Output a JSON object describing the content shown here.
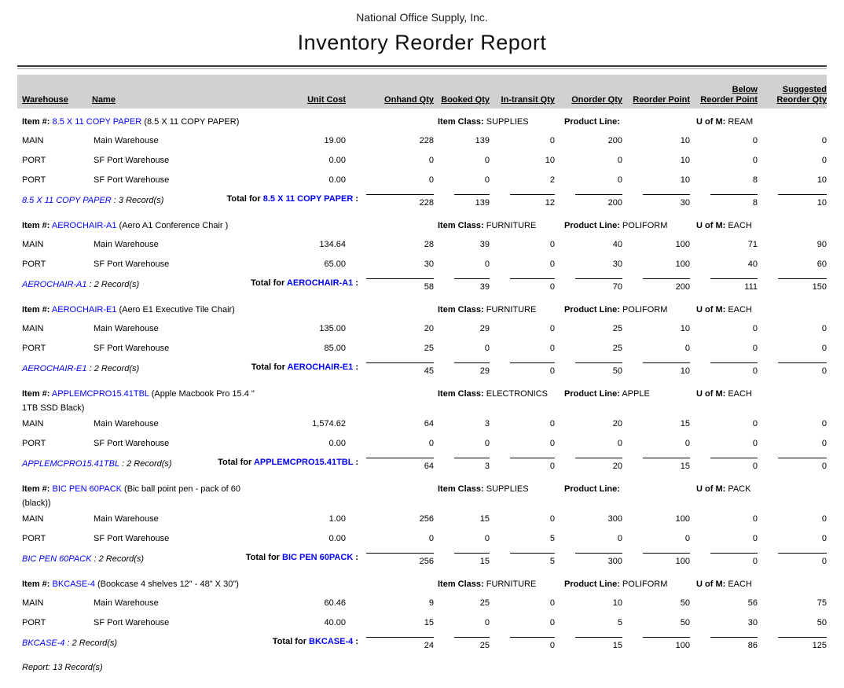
{
  "report": {
    "company": "National Office Supply, Inc.",
    "title": "Inventory Reorder Report",
    "footer": "Report: 13 Record(s)"
  },
  "colors": {
    "link_blue": "#0000FE",
    "header_band_gray": "#D1D1D1"
  },
  "columns": {
    "warehouse": "Warehouse",
    "name": "Name",
    "unit_cost": "Unit Cost",
    "onhand": "Onhand Qty",
    "booked": "Booked Qty",
    "in_transit": "In-transit Qty",
    "onorder": "Onorder Qty",
    "reorder_point": "Reorder Point",
    "below_line1": "Below",
    "below_line2": "Reorder Point",
    "suggested_line1": "Suggested",
    "suggested_line2": "Reorder Qty"
  },
  "labels": {
    "item_prefix": "Item #:",
    "item_class": "Item Class:",
    "product_line": "Product Line:",
    "uom": "U of M:",
    "total_for": "Total for",
    "records_suffix": "Record(s)"
  },
  "groups": [
    {
      "code": "8.5 X 11 COPY PAPER",
      "description": "(8.5 X 11 COPY PAPER)",
      "description_line2": "",
      "item_class": "SUPPLIES",
      "product_line": "",
      "uom": "REAM",
      "record_count": "3",
      "rows": [
        {
          "warehouse": "MAIN",
          "name": "Main Warehouse",
          "unit_cost": "19.00",
          "onhand": "228",
          "booked": "139",
          "in_transit": "0",
          "onorder": "200",
          "reorder_point": "10",
          "below_reorder": "0",
          "suggested": "0"
        },
        {
          "warehouse": "PORT",
          "name": "SF Port Warehouse",
          "unit_cost": "0.00",
          "onhand": "0",
          "booked": "0",
          "in_transit": "10",
          "onorder": "0",
          "reorder_point": "10",
          "below_reorder": "0",
          "suggested": "0"
        },
        {
          "warehouse": "PORT",
          "name": "SF Port Warehouse",
          "unit_cost": "0.00",
          "onhand": "0",
          "booked": "0",
          "in_transit": "2",
          "onorder": "0",
          "reorder_point": "10",
          "below_reorder": "8",
          "suggested": "10"
        }
      ],
      "totals": {
        "onhand": "228",
        "booked": "139",
        "in_transit": "12",
        "onorder": "200",
        "reorder_point": "30",
        "below_reorder": "8",
        "suggested": "10"
      }
    },
    {
      "code": "AEROCHAIR-A1",
      "description": "(Aero A1 Conference Chair )",
      "description_line2": "",
      "item_class": "FURNITURE",
      "product_line": "POLIFORM",
      "uom": "EACH",
      "record_count": "2",
      "rows": [
        {
          "warehouse": "MAIN",
          "name": "Main Warehouse",
          "unit_cost": "134.64",
          "onhand": "28",
          "booked": "39",
          "in_transit": "0",
          "onorder": "40",
          "reorder_point": "100",
          "below_reorder": "71",
          "suggested": "90"
        },
        {
          "warehouse": "PORT",
          "name": "SF Port Warehouse",
          "unit_cost": "65.00",
          "onhand": "30",
          "booked": "0",
          "in_transit": "0",
          "onorder": "30",
          "reorder_point": "100",
          "below_reorder": "40",
          "suggested": "60"
        }
      ],
      "totals": {
        "onhand": "58",
        "booked": "39",
        "in_transit": "0",
        "onorder": "70",
        "reorder_point": "200",
        "below_reorder": "111",
        "suggested": "150"
      }
    },
    {
      "code": "AEROCHAIR-E1",
      "description": "(Aero E1 Executive Tile Chair)",
      "description_line2": "",
      "item_class": "FURNITURE",
      "product_line": "POLIFORM",
      "uom": "EACH",
      "record_count": "2",
      "rows": [
        {
          "warehouse": "MAIN",
          "name": "Main Warehouse",
          "unit_cost": "135.00",
          "onhand": "20",
          "booked": "29",
          "in_transit": "0",
          "onorder": "25",
          "reorder_point": "10",
          "below_reorder": "0",
          "suggested": "0"
        },
        {
          "warehouse": "PORT",
          "name": "SF Port Warehouse",
          "unit_cost": "85.00",
          "onhand": "25",
          "booked": "0",
          "in_transit": "0",
          "onorder": "25",
          "reorder_point": "0",
          "below_reorder": "0",
          "suggested": "0"
        }
      ],
      "totals": {
        "onhand": "45",
        "booked": "29",
        "in_transit": "0",
        "onorder": "50",
        "reorder_point": "10",
        "below_reorder": "0",
        "suggested": "0"
      }
    },
    {
      "code": "APPLEMCPRO15.41TBL",
      "description": "(Apple Macbook Pro 15.4 \"",
      "description_line2": "1TB SSD Black)",
      "item_class": "ELECTRONICS",
      "product_line": "APPLE",
      "uom": "EACH",
      "record_count": "2",
      "rows": [
        {
          "warehouse": "MAIN",
          "name": "Main Warehouse",
          "unit_cost": "1,574.62",
          "onhand": "64",
          "booked": "3",
          "in_transit": "0",
          "onorder": "20",
          "reorder_point": "15",
          "below_reorder": "0",
          "suggested": "0"
        },
        {
          "warehouse": "PORT",
          "name": "SF Port Warehouse",
          "unit_cost": "0.00",
          "onhand": "0",
          "booked": "0",
          "in_transit": "0",
          "onorder": "0",
          "reorder_point": "0",
          "below_reorder": "0",
          "suggested": "0"
        }
      ],
      "totals": {
        "onhand": "64",
        "booked": "3",
        "in_transit": "0",
        "onorder": "20",
        "reorder_point": "15",
        "below_reorder": "0",
        "suggested": "0"
      }
    },
    {
      "code": "BIC PEN 60PACK",
      "description": "(Bic ball point pen - pack of 60",
      "description_line2": "(black))",
      "item_class": "SUPPLIES",
      "product_line": "",
      "uom": "PACK",
      "record_count": "2",
      "rows": [
        {
          "warehouse": "MAIN",
          "name": "Main Warehouse",
          "unit_cost": "1.00",
          "onhand": "256",
          "booked": "15",
          "in_transit": "0",
          "onorder": "300",
          "reorder_point": "100",
          "below_reorder": "0",
          "suggested": "0"
        },
        {
          "warehouse": "PORT",
          "name": "SF Port Warehouse",
          "unit_cost": "0.00",
          "onhand": "0",
          "booked": "0",
          "in_transit": "5",
          "onorder": "0",
          "reorder_point": "0",
          "below_reorder": "0",
          "suggested": "0"
        }
      ],
      "totals": {
        "onhand": "256",
        "booked": "15",
        "in_transit": "5",
        "onorder": "300",
        "reorder_point": "100",
        "below_reorder": "0",
        "suggested": "0"
      }
    },
    {
      "code": "BKCASE-4",
      "description": "(Bookcase 4 shelves 12\" - 48\" X 30\")",
      "description_line2": "",
      "item_class": "FURNITURE",
      "product_line": "POLIFORM",
      "uom": "EACH",
      "record_count": "2",
      "rows": [
        {
          "warehouse": "MAIN",
          "name": "Main Warehouse",
          "unit_cost": "60.46",
          "onhand": "9",
          "booked": "25",
          "in_transit": "0",
          "onorder": "10",
          "reorder_point": "50",
          "below_reorder": "56",
          "suggested": "75"
        },
        {
          "warehouse": "PORT",
          "name": "SF Port Warehouse",
          "unit_cost": "40.00",
          "onhand": "15",
          "booked": "0",
          "in_transit": "0",
          "onorder": "5",
          "reorder_point": "50",
          "below_reorder": "30",
          "suggested": "50"
        }
      ],
      "totals": {
        "onhand": "24",
        "booked": "25",
        "in_transit": "0",
        "onorder": "15",
        "reorder_point": "100",
        "below_reorder": "86",
        "suggested": "125"
      }
    }
  ]
}
